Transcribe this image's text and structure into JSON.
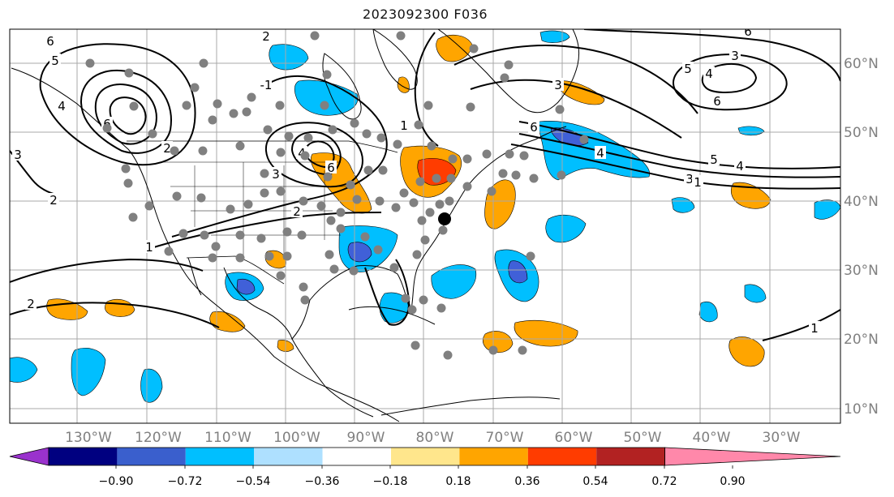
{
  "title": "2023092300 F036",
  "map": {
    "lon_labels": [
      "130°W",
      "120°W",
      "110°W",
      "100°W",
      "90°W",
      "80°W",
      "70°W",
      "60°W",
      "50°W",
      "40°W",
      "30°W"
    ],
    "lat_labels": [
      "60°N",
      "50°N",
      "40°N",
      "30°N",
      "20°N",
      "10°N"
    ],
    "contour_labels": [
      "6",
      "5",
      "4",
      "3",
      "2",
      "1",
      "-1"
    ],
    "colors": {
      "warm_light": "#FFE68C",
      "warm_orange": "#FFA500",
      "warm_red": "#FF3C00",
      "cool_light": "#AEE0FF",
      "cool_cyan": "#00BFFF",
      "cool_blue": "#4060D8",
      "contour": "#000000",
      "station": "#808080",
      "grid": "#A8A8A8"
    }
  },
  "colorbar": {
    "ticks": [
      "−0.90",
      "−0.72",
      "−0.54",
      "−0.36",
      "−0.18",
      "0.18",
      "0.36",
      "0.54",
      "0.72",
      "0.90"
    ],
    "colors": [
      "#9A32CD",
      "#000080",
      "#3A5FCD",
      "#00BFFF",
      "#AEE0FF",
      "#FFFFFF",
      "#FFE68C",
      "#FFA500",
      "#FF3C00",
      "#B22222",
      "#FF88AA"
    ]
  }
}
